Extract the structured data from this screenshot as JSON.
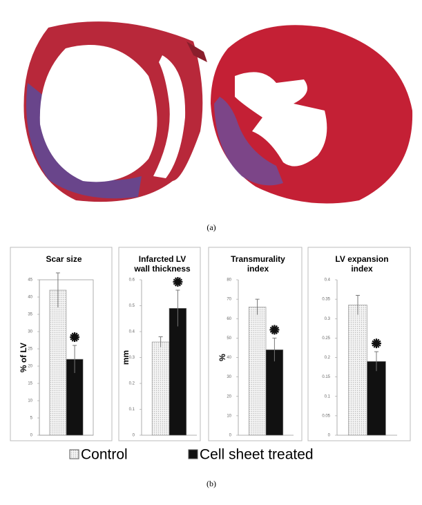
{
  "caption_a": "(a)",
  "caption_b": "(b)",
  "legend": [
    {
      "name": "Control",
      "color": "#e6e6e6"
    },
    {
      "name": "Cell sheet treated",
      "color": "#111111"
    }
  ],
  "chart_data": [
    {
      "type": "bar",
      "title": [
        "Scar size"
      ],
      "y_label": "% of LV",
      "values": [
        42,
        22
      ],
      "errors": [
        5,
        4
      ],
      "ylim": [
        0,
        45
      ],
      "yticks": [
        0,
        5,
        10,
        15,
        20,
        25,
        30,
        35,
        40,
        45
      ],
      "plot_border": true
    },
    {
      "type": "bar",
      "title": [
        "Infarcted LV",
        "wall thickness"
      ],
      "y_label": "mm",
      "values": [
        0.36,
        0.49
      ],
      "errors": [
        0.02,
        0.07
      ],
      "ylim": [
        0,
        0.6
      ],
      "yticks": [
        0,
        0.1,
        0.2,
        0.3,
        0.4,
        0.5,
        0.6
      ],
      "plot_border": false
    },
    {
      "type": "bar",
      "title": [
        "Transmurality",
        "index"
      ],
      "y_label": "%",
      "values": [
        66,
        44
      ],
      "errors": [
        4,
        6
      ],
      "ylim": [
        0,
        80
      ],
      "yticks": [
        0,
        10,
        20,
        30,
        40,
        50,
        60,
        70,
        80
      ],
      "plot_border": false
    },
    {
      "type": "bar",
      "title": [
        "LV expansion",
        "index"
      ],
      "values": [
        0.335,
        0.19
      ],
      "errors": [
        0.025,
        0.025
      ],
      "ylim": [
        0,
        0.4
      ],
      "yticks": [
        0,
        0.05,
        0.1,
        0.15,
        0.2,
        0.25,
        0.3,
        0.35,
        0.4
      ],
      "plot_border": false
    }
  ]
}
